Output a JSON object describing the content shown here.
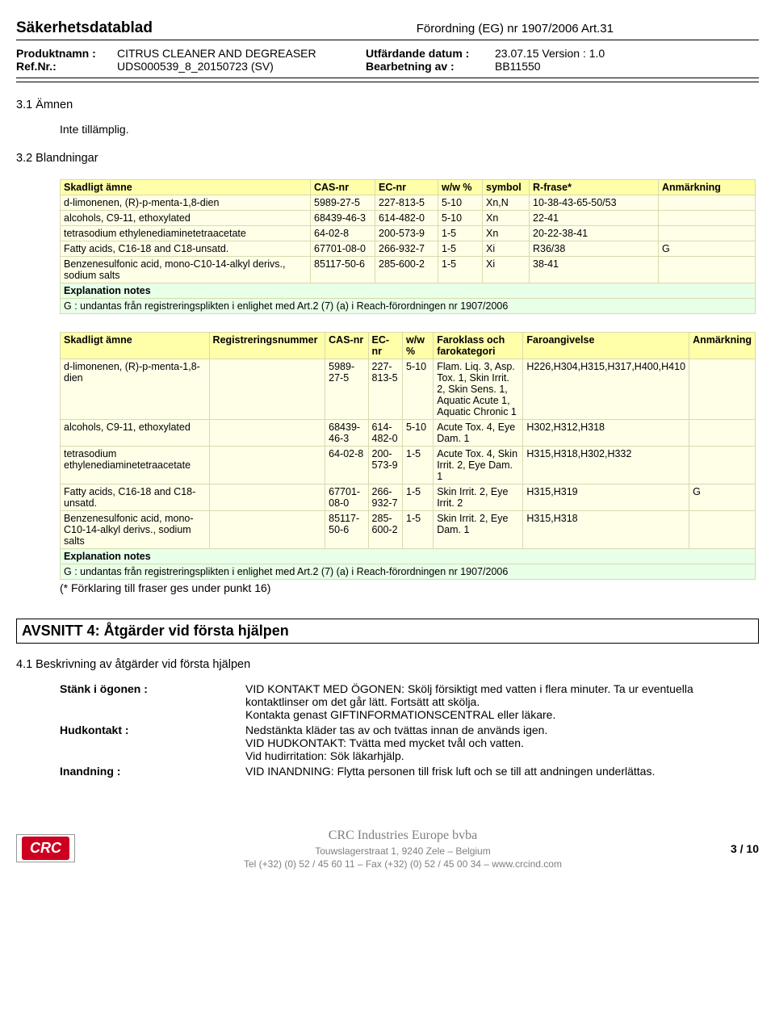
{
  "header": {
    "title": "Säkerhetsdatablad",
    "regulation": "Förordning (EG) nr 1907/2006 Art.31",
    "product_label": "Produktnamn :",
    "product_value": "CITRUS CLEANER AND DEGREASER",
    "ref_label": "Ref.Nr.:",
    "ref_value": "UDS000539_8_20150723 (SV)",
    "date_label": "Utfärdande datum :",
    "date_value": "23.07.15 Version : 1.0",
    "edit_label": "Bearbetning av :",
    "edit_value": "BB11550"
  },
  "s31": {
    "title": "3.1 Ämnen",
    "body": "Inte tillämplig."
  },
  "s32": {
    "title": "3.2 Blandningar"
  },
  "t1": {
    "headers": [
      "Skadligt ämne",
      "CAS-nr",
      "EC-nr",
      "w/w %",
      "symbol",
      "R-frase*",
      "Anmärkning"
    ],
    "rows": [
      [
        "d-limonenen, (R)-p-menta-1,8-dien",
        "5989-27-5",
        "227-813-5",
        "5-10",
        "Xn,N",
        "10-38-43-65-50/53",
        ""
      ],
      [
        "alcohols, C9-11, ethoxylated",
        "68439-46-3",
        "614-482-0",
        "5-10",
        "Xn",
        "22-41",
        ""
      ],
      [
        "tetrasodium ethylenediaminetetraacetate",
        "64-02-8",
        "200-573-9",
        "1-5",
        "Xn",
        "20-22-38-41",
        ""
      ],
      [
        "Fatty acids, C16-18 and C18-unsatd.",
        "67701-08-0",
        "266-932-7",
        "1-5",
        "Xi",
        "R36/38",
        "G"
      ],
      [
        "Benzenesulfonic acid, mono-C10-14-alkyl derivs., sodium salts",
        "85117-50-6",
        "285-600-2",
        "1-5",
        "Xi",
        "38-41",
        ""
      ]
    ],
    "exp_title": "Explanation notes",
    "exp_body": "G : undantas från registreringsplikten i enlighet med Art.2 (7) (a) i Reach-förordningen nr 1907/2006"
  },
  "t2": {
    "headers": [
      "Skadligt ämne",
      "Registreringsnummer",
      "CAS-nr",
      "EC-nr",
      "w/w %",
      "Faroklass och farokategori",
      "Faroangivelse",
      "Anmärkning"
    ],
    "rows": [
      [
        "d-limonenen, (R)-p-menta-1,8-dien",
        "",
        "5989-27-5",
        "227-813-5",
        "5-10",
        "Flam. Liq. 3, Asp. Tox. 1, Skin Irrit. 2, Skin Sens. 1, Aquatic Acute 1, Aquatic Chronic 1",
        "H226,H304,H315,H317,H400,H410",
        ""
      ],
      [
        "alcohols, C9-11, ethoxylated",
        "",
        "68439-46-3",
        "614-482-0",
        "5-10",
        "Acute Tox. 4, Eye Dam. 1",
        "H302,H312,H318",
        ""
      ],
      [
        "tetrasodium ethylenediaminetetraacetate",
        "",
        "64-02-8",
        "200-573-9",
        "1-5",
        "Acute Tox. 4, Skin Irrit. 2, Eye Dam. 1",
        "H315,H318,H302,H332",
        ""
      ],
      [
        "Fatty acids, C16-18 and C18-unsatd.",
        "",
        "67701-08-0",
        "266-932-7",
        "1-5",
        "Skin Irrit. 2, Eye Irrit. 2",
        "H315,H319",
        "G"
      ],
      [
        "Benzenesulfonic acid, mono-C10-14-alkyl derivs., sodium salts",
        "",
        "85117-50-6",
        "285-600-2",
        "1-5",
        "Skin Irrit. 2, Eye Dam. 1",
        "H315,H318",
        ""
      ]
    ],
    "exp_title": "Explanation notes",
    "exp_body": "G : undantas från registreringsplikten i enlighet med Art.2 (7) (a) i Reach-förordningen nr 1907/2006",
    "note": "(* Förklaring till fraser ges under punkt 16)"
  },
  "avsnitt4": {
    "title": "AVSNITT 4: Åtgärder vid första hjälpen",
    "sub": "4.1 Beskrivning av åtgärder vid första hjälpen",
    "rows": [
      {
        "k": "Stänk i ögonen :",
        "v": "VID KONTAKT MED ÖGONEN: Skölj försiktigt med vatten i flera minuter. Ta ur eventuella kontaktlinser om det går lätt. Fortsätt att skölja.\nKontakta genast GIFTINFORMATIONSCENTRAL eller läkare."
      },
      {
        "k": "Hudkontakt :",
        "v": "Nedstänkta kläder tas av och tvättas innan de används igen.\nVID HUDKONTAKT: Tvätta med mycket tvål och vatten.\nVid hudirritation: Sök läkarhjälp."
      },
      {
        "k": "Inandning :",
        "v": "VID INANDNING: Flytta personen till frisk luft och se till att andningen underlättas."
      }
    ]
  },
  "footer": {
    "logo": "CRC",
    "company": "CRC Industries Europe bvba",
    "addr": "Touwslagerstraat 1, 9240 Zele – Belgium",
    "tel": "Tel (+32) (0) 52 / 45 60 11 – Fax (+32) (0) 52 / 45 00 34 – www.crcind.com",
    "page": "3 / 10"
  }
}
